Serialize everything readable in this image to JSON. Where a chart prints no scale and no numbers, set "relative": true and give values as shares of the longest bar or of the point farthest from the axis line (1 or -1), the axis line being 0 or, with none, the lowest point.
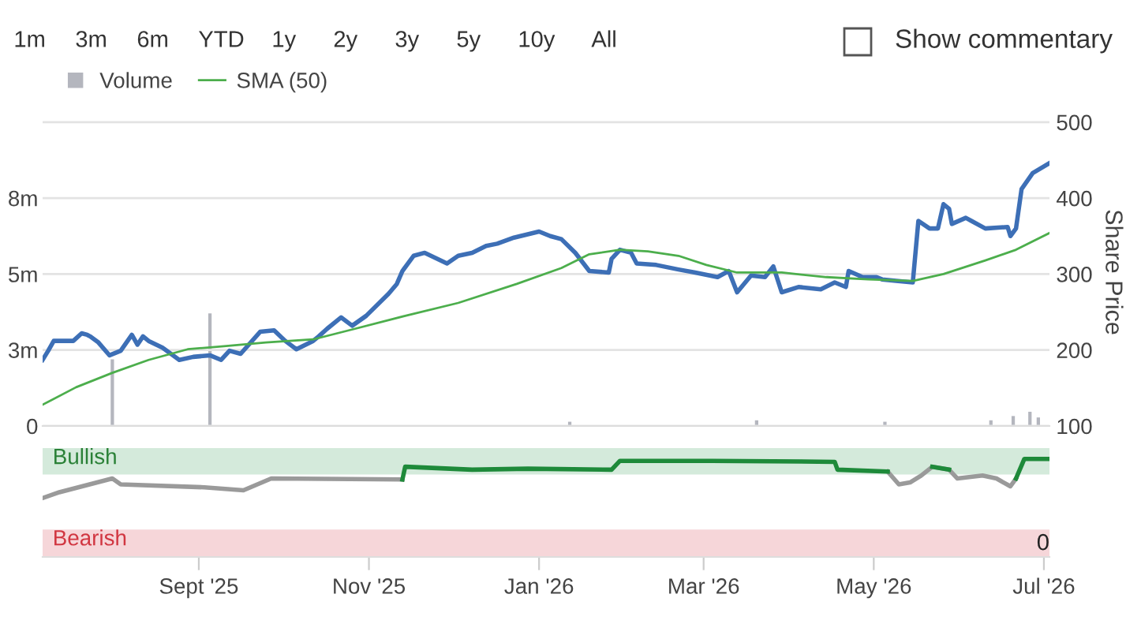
{
  "chart_data": [
    {
      "type": "line",
      "annotations": [
        "1m",
        "3m",
        "6m",
        "YTD",
        "1y",
        "2y",
        "3y",
        "5y",
        "10y",
        "All",
        "Show commentary"
      ],
      "ylabel": "Share Price",
      "legend": "top left",
      "grid": "y",
      "tick_labels": "y",
      "xlim": [
        "2025-07-07",
        "2026-07-03"
      ],
      "ylim": [
        100,
        505
      ],
      "yticks": [
        100,
        200,
        300,
        400,
        500
      ],
      "y2lim": [
        0,
        10.8
      ],
      "y2ticks": [
        {
          "value": 0,
          "label": "0"
        },
        {
          "value": 2.67,
          "label": "3m"
        },
        {
          "value": 5.33,
          "label": "5m"
        },
        {
          "value": 8,
          "label": "8m"
        }
      ],
      "series": [
        {
          "type": "bar",
          "axis": "y2",
          "name": "Volume",
          "color": "#b4b6be",
          "x": [
            "2025-08-01",
            "2025-09-05",
            "2026-01-12",
            "2026-03-20",
            "2026-05-05",
            "2026-06-12",
            "2026-06-20",
            "2026-06-26",
            "2026-06-29"
          ],
          "values": [
            2.34,
            3.95,
            0.15,
            0.2,
            0.15,
            0.2,
            0.35,
            0.5,
            0.3
          ]
        },
        {
          "type": "line",
          "color": "#3d6fb6",
          "x": [
            "2025-07-07",
            "2025-07-09",
            "2025-07-11",
            "2025-07-18",
            "2025-07-21",
            "2025-07-23",
            "2025-07-24",
            "2025-07-27",
            "2025-07-31",
            "2025-08-04",
            "2025-08-08",
            "2025-08-10",
            "2025-08-12",
            "2025-08-14",
            "2025-08-19",
            "2025-08-25",
            "2025-08-30",
            "2025-09-05",
            "2025-09-09",
            "2025-09-12",
            "2025-09-16",
            "2025-09-23",
            "2025-09-28",
            "2025-10-02",
            "2025-10-06",
            "2025-10-12",
            "2025-10-14",
            "2025-10-17",
            "2025-10-22",
            "2025-10-26",
            "2025-10-31",
            "2025-11-08",
            "2025-11-11",
            "2025-11-13",
            "2025-11-17",
            "2025-11-21",
            "2025-11-29",
            "2025-12-03",
            "2025-12-08",
            "2025-12-13",
            "2025-12-17",
            "2025-12-23",
            "2026-01-01",
            "2026-01-05",
            "2026-01-09",
            "2026-01-14",
            "2026-01-19",
            "2026-01-26",
            "2026-01-27",
            "2026-01-30",
            "2026-02-03",
            "2026-02-05",
            "2026-02-12",
            "2026-02-20",
            "2026-02-26",
            "2026-03-06",
            "2026-03-10",
            "2026-03-13",
            "2026-03-18",
            "2026-03-23",
            "2026-03-26",
            "2026-03-29",
            "2026-04-04",
            "2026-04-12",
            "2026-04-17",
            "2026-04-21",
            "2026-04-22",
            "2026-04-27",
            "2026-05-02",
            "2026-05-04",
            "2026-05-09",
            "2026-05-15",
            "2026-05-17",
            "2026-05-21",
            "2026-05-24",
            "2026-05-26",
            "2026-05-28",
            "2026-05-29",
            "2026-06-03",
            "2026-06-05",
            "2026-06-10",
            "2026-06-18",
            "2026-06-19",
            "2026-06-21",
            "2026-06-23",
            "2026-06-27",
            "2026-07-03"
          ],
          "values": [
            187,
            199,
            212,
            212,
            222,
            220,
            218,
            210,
            193,
            199,
            220,
            207,
            218,
            212,
            203,
            187,
            191,
            193,
            187,
            199,
            195,
            224,
            226,
            212,
            201,
            212,
            218,
            228,
            243,
            232,
            245,
            274,
            287,
            304,
            324,
            328,
            314,
            324,
            328,
            337,
            340,
            348,
            356,
            350,
            346,
            328,
            304,
            302,
            320,
            332,
            328,
            314,
            312,
            306,
            302,
            296,
            304,
            276,
            298,
            296,
            310,
            276,
            283,
            280,
            289,
            283,
            304,
            296,
            296,
            293,
            291,
            289,
            370,
            360,
            360,
            392,
            386,
            366,
            374,
            370,
            360,
            362,
            350,
            360,
            412,
            433,
            446
          ]
        },
        {
          "type": "line",
          "name": "SMA (50)",
          "color": "#4cae4c",
          "x": [
            "2025-07-07",
            "2025-07-19",
            "2025-08-01",
            "2025-08-14",
            "2025-08-28",
            "2025-09-10",
            "2025-09-25",
            "2025-10-12",
            "2025-10-27",
            "2025-11-14",
            "2025-12-03",
            "2025-12-24",
            "2026-01-09",
            "2026-01-19",
            "2026-01-30",
            "2026-02-09",
            "2026-02-20",
            "2026-03-02",
            "2026-03-13",
            "2026-03-29",
            "2026-04-14",
            "2026-04-29",
            "2026-05-15",
            "2026-05-26",
            "2026-06-10",
            "2026-06-21",
            "2026-07-03"
          ],
          "values": [
            128,
            151,
            170,
            187,
            201,
            205,
            210,
            214,
            228,
            245,
            262,
            287,
            308,
            326,
            332,
            330,
            324,
            312,
            302,
            302,
            296,
            293,
            291,
            300,
            318,
            332,
            354
          ]
        }
      ]
    },
    {
      "type": "line",
      "relative": true,
      "annotations": [
        "0"
      ],
      "xlim": [
        "2025-07-07",
        "2026-07-03"
      ],
      "xticks": [
        {
          "value": "2025-09-01",
          "label": "Sept '25"
        },
        {
          "value": "2025-11-01",
          "label": "Nov '25"
        },
        {
          "value": "2026-01-01",
          "label": "Jan '26"
        },
        {
          "value": "2026-03-01",
          "label": "Mar '26"
        },
        {
          "value": "2026-05-01",
          "label": "May '26"
        },
        {
          "value": "2026-07-01",
          "label": "Jul '26"
        }
      ],
      "bands": [
        {
          "axis": "y",
          "from": 0.84,
          "to": 1.11,
          "label": "Bullish",
          "color": "#d4eadb"
        },
        {
          "axis": "y",
          "from": 0,
          "to": 0.28,
          "label": "Bearish",
          "color": "#f6d6d9"
        }
      ],
      "x": [
        "2025-07-07",
        "2025-07-13",
        "2025-08-01",
        "2025-08-04",
        "2025-09-03",
        "2025-09-17",
        "2025-09-27",
        "2025-11-13",
        "2025-11-14",
        "2025-12-08",
        "2025-12-28",
        "2026-01-27",
        "2026-01-30",
        "2026-03-04",
        "2026-04-17",
        "2026-04-18",
        "2026-05-06",
        "2026-05-10",
        "2026-05-14",
        "2026-05-18",
        "2026-05-22",
        "2026-05-28",
        "2026-05-31",
        "2026-06-09",
        "2026-06-14",
        "2026-06-19",
        "2026-06-21",
        "2026-06-24",
        "2026-07-03"
      ],
      "series": [
        {
          "color": "#9a9a9a",
          "values": [
            0.6,
            0.66,
            0.8,
            0.74,
            0.71,
            0.68,
            0.8,
            0.79,
            null,
            null,
            null,
            null,
            null,
            null,
            null,
            null,
            0.87,
            0.74,
            0.76,
            0.83,
            0.92,
            0.89,
            0.8,
            0.83,
            0.8,
            0.72,
            0.8,
            null,
            null
          ]
        },
        {
          "color": "#1e8a3a",
          "values": [
            null,
            null,
            null,
            null,
            null,
            null,
            null,
            0.79,
            0.92,
            0.89,
            0.9,
            0.89,
            0.98,
            0.98,
            0.97,
            0.89,
            0.87,
            null,
            null,
            null,
            0.92,
            0.89,
            null,
            null,
            null,
            null,
            0.8,
            1,
            1
          ]
        }
      ]
    }
  ]
}
